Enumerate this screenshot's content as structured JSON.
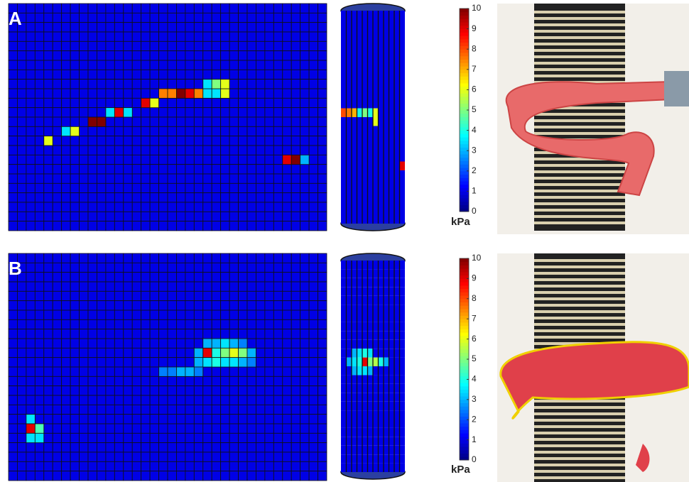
{
  "panels": [
    {
      "label": "A",
      "colorbar": {
        "lim": [
          0,
          10
        ],
        "ticks": [
          0,
          1,
          2,
          3,
          4,
          5,
          6,
          7,
          8,
          9,
          10
        ],
        "unit": "kPa"
      },
      "map": {
        "cols": 36,
        "rows": 24,
        "base": 1,
        "cells": [
          {
            "col": 4,
            "row": 14,
            "value": 6
          },
          {
            "col": 6,
            "row": 13,
            "value": 3.5
          },
          {
            "col": 7,
            "row": 13,
            "value": 6
          },
          {
            "col": 9,
            "row": 12,
            "value": 10
          },
          {
            "col": 10,
            "row": 12,
            "value": 10
          },
          {
            "col": 11,
            "row": 11,
            "value": 3.5
          },
          {
            "col": 12,
            "row": 11,
            "value": 9
          },
          {
            "col": 13,
            "row": 11,
            "value": 3.5
          },
          {
            "col": 15,
            "row": 10,
            "value": 9
          },
          {
            "col": 16,
            "row": 10,
            "value": 6
          },
          {
            "col": 17,
            "row": 9,
            "value": 7.5
          },
          {
            "col": 18,
            "row": 9,
            "value": 7.5
          },
          {
            "col": 19,
            "row": 9,
            "value": 10
          },
          {
            "col": 20,
            "row": 9,
            "value": 9
          },
          {
            "col": 21,
            "row": 9,
            "value": 7.5
          },
          {
            "col": 22,
            "row": 9,
            "value": 3.5
          },
          {
            "col": 23,
            "row": 9,
            "value": 3.5
          },
          {
            "col": 24,
            "row": 9,
            "value": 6
          },
          {
            "col": 22,
            "row": 8,
            "value": 3.5
          },
          {
            "col": 23,
            "row": 8,
            "value": 5
          },
          {
            "col": 24,
            "row": 8,
            "value": 6
          },
          {
            "col": 31,
            "row": 16,
            "value": 9
          },
          {
            "col": 32,
            "row": 16,
            "value": 10
          },
          {
            "col": 33,
            "row": 16,
            "value": 3
          }
        ]
      },
      "cylinder": {
        "cols": 12,
        "rows": 24,
        "base": 1,
        "cells": [
          {
            "col": 0,
            "row": 11,
            "value": 8
          },
          {
            "col": 1,
            "row": 11,
            "value": 7.5
          },
          {
            "col": 2,
            "row": 11,
            "value": 7
          },
          {
            "col": 3,
            "row": 11,
            "value": 4
          },
          {
            "col": 4,
            "row": 11,
            "value": 5
          },
          {
            "col": 5,
            "row": 11,
            "value": 4
          },
          {
            "col": 6,
            "row": 11,
            "value": 6
          },
          {
            "col": 6,
            "row": 12,
            "value": 6
          },
          {
            "col": 11,
            "row": 17,
            "value": 9
          }
        ]
      }
    },
    {
      "label": "B",
      "colorbar": {
        "lim": [
          0,
          10
        ],
        "ticks": [
          0,
          1,
          2,
          3,
          4,
          5,
          6,
          7,
          8,
          9,
          10
        ],
        "unit": "kPa"
      },
      "map": {
        "cols": 36,
        "rows": 24,
        "base": 1,
        "cells": [
          {
            "col": 22,
            "row": 9,
            "value": 3
          },
          {
            "col": 23,
            "row": 9,
            "value": 3
          },
          {
            "col": 24,
            "row": 9,
            "value": 3.5
          },
          {
            "col": 25,
            "row": 9,
            "value": 3
          },
          {
            "col": 26,
            "row": 9,
            "value": 2.5
          },
          {
            "col": 21,
            "row": 10,
            "value": 3
          },
          {
            "col": 22,
            "row": 10,
            "value": 9
          },
          {
            "col": 23,
            "row": 10,
            "value": 4
          },
          {
            "col": 24,
            "row": 10,
            "value": 5
          },
          {
            "col": 25,
            "row": 10,
            "value": 6
          },
          {
            "col": 26,
            "row": 10,
            "value": 5
          },
          {
            "col": 27,
            "row": 10,
            "value": 3
          },
          {
            "col": 21,
            "row": 11,
            "value": 3
          },
          {
            "col": 22,
            "row": 11,
            "value": 3.5
          },
          {
            "col": 23,
            "row": 11,
            "value": 4
          },
          {
            "col": 24,
            "row": 11,
            "value": 3.5
          },
          {
            "col": 25,
            "row": 11,
            "value": 3.5
          },
          {
            "col": 26,
            "row": 11,
            "value": 3
          },
          {
            "col": 27,
            "row": 11,
            "value": 2.5
          },
          {
            "col": 17,
            "row": 12,
            "value": 2.5
          },
          {
            "col": 18,
            "row": 12,
            "value": 2.5
          },
          {
            "col": 19,
            "row": 12,
            "value": 3
          },
          {
            "col": 20,
            "row": 12,
            "value": 3
          },
          {
            "col": 21,
            "row": 12,
            "value": 2.5
          },
          {
            "col": 2,
            "row": 17,
            "value": 3.5
          },
          {
            "col": 2,
            "row": 18,
            "value": 9
          },
          {
            "col": 3,
            "row": 18,
            "value": 4.5
          },
          {
            "col": 2,
            "row": 19,
            "value": 3.5
          },
          {
            "col": 3,
            "row": 19,
            "value": 3.5
          }
        ]
      },
      "cylinder": {
        "cols": 12,
        "rows": 24,
        "base": 1,
        "cells": [
          {
            "col": 1,
            "row": 11,
            "value": 3
          },
          {
            "col": 2,
            "row": 11,
            "value": 3.5
          },
          {
            "col": 3,
            "row": 11,
            "value": 4
          },
          {
            "col": 4,
            "row": 11,
            "value": 9
          },
          {
            "col": 5,
            "row": 11,
            "value": 5
          },
          {
            "col": 6,
            "row": 11,
            "value": 5.5
          },
          {
            "col": 7,
            "row": 11,
            "value": 4
          },
          {
            "col": 8,
            "row": 11,
            "value": 3
          },
          {
            "col": 2,
            "row": 10,
            "value": 3
          },
          {
            "col": 3,
            "row": 10,
            "value": 3.5
          },
          {
            "col": 4,
            "row": 10,
            "value": 4
          },
          {
            "col": 5,
            "row": 10,
            "value": 3.5
          },
          {
            "col": 2,
            "row": 12,
            "value": 3
          },
          {
            "col": 3,
            "row": 12,
            "value": 3.5
          },
          {
            "col": 4,
            "row": 12,
            "value": 3.5
          },
          {
            "col": 5,
            "row": 12,
            "value": 3
          }
        ]
      }
    }
  ]
}
